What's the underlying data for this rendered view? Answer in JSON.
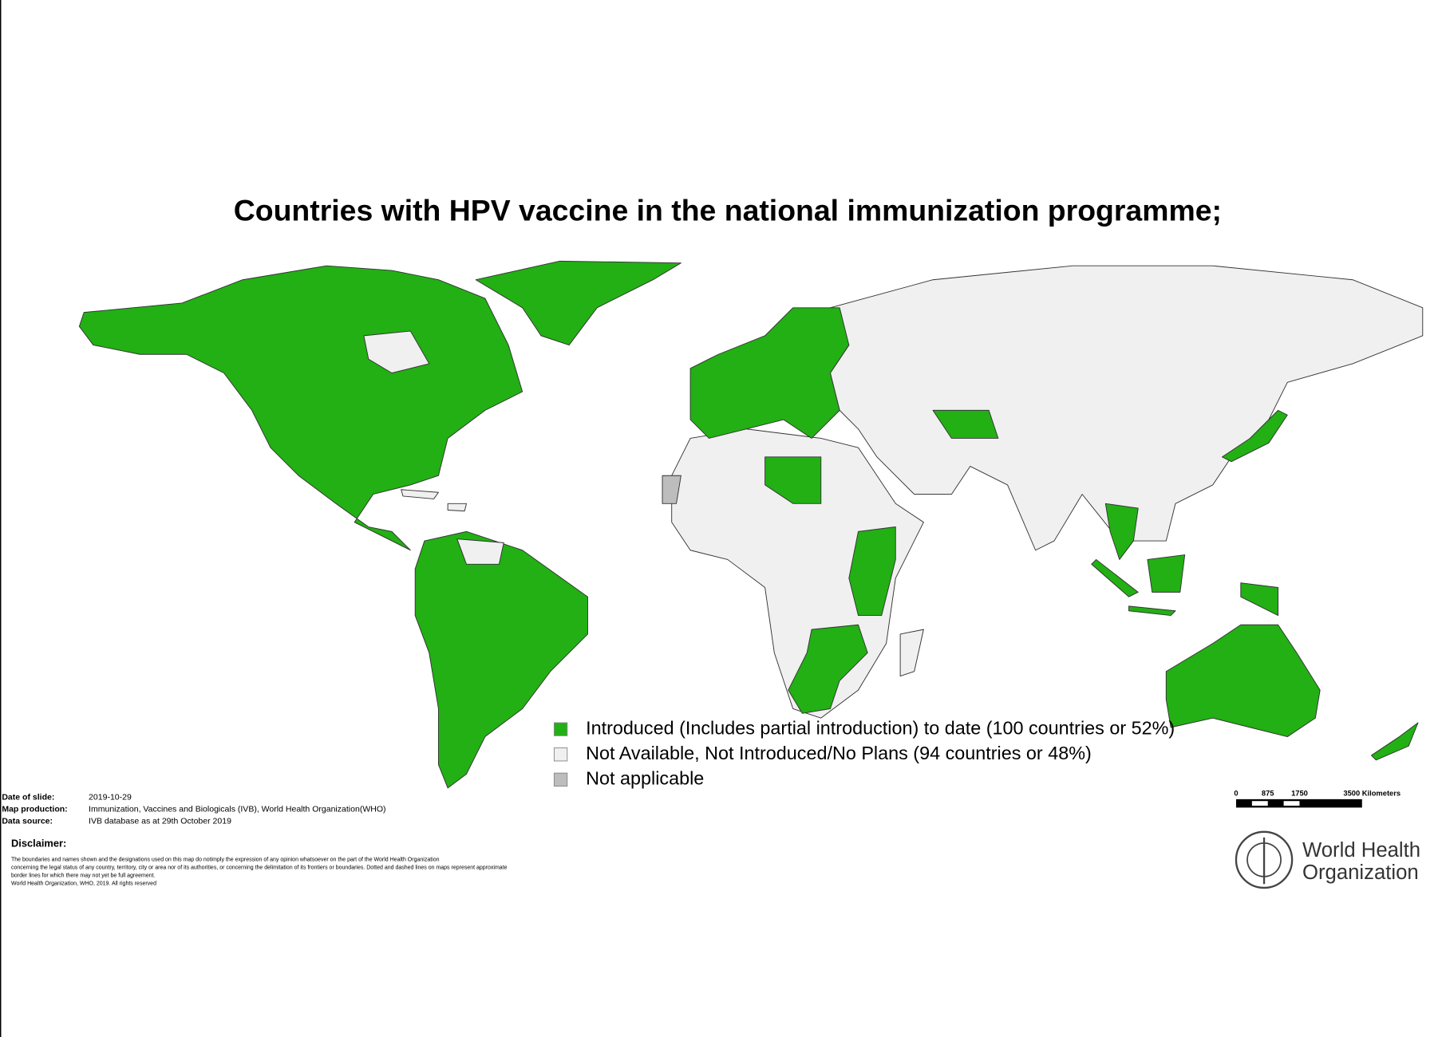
{
  "header": {
    "title": "Countries with HPV vaccine in the national immunization programme;"
  },
  "legend": {
    "items": [
      {
        "label": "Introduced (Includes partial introduction) to date (100 countries or 52%)",
        "color": "#22b014"
      },
      {
        "label": "Not Available, Not Introduced/No Plans (94 countries or 48%)",
        "color": "#f0f0f0"
      },
      {
        "label": "Not applicable",
        "color": "#bdbdbd"
      }
    ]
  },
  "footer": {
    "rows": [
      {
        "key": "Date of slide:",
        "value": "2019-10-29"
      },
      {
        "key": "Map production:",
        "value": "Immunization, Vaccines and Biologicals (IVB), World Health Organization(WHO)"
      },
      {
        "key": "Data source:",
        "value": "IVB database as at 29th October 2019"
      }
    ],
    "disclaimer_title": "Disclaimer:",
    "disclaimer_lines": [
      "The boundaries and names shown and the designations used on this map do notimply the expression of any opinion whatsoever on the part of the World Health Organization",
      " concerning the legal status of any country, territory, city or area nor of its authorities, or concerning the delimitation of its frontiers or boundaries. Dotted and dashed lines on maps represent approximate",
      " border lines for which there may not yet be full agreement.",
      "World Health Organization, WHO, 2019. All rights reserved"
    ]
  },
  "scale_bar": {
    "labels": [
      "0",
      "875",
      "1750",
      "3500 Kilometers"
    ]
  },
  "logo": {
    "line1": "World Health",
    "line2": "Organization"
  }
}
